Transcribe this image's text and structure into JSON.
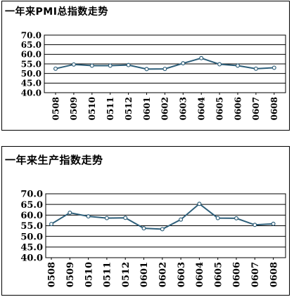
{
  "chart_data": [
    {
      "type": "line",
      "title": "一年来PMI总指数走势",
      "categories": [
        "0508",
        "0509",
        "0510",
        "0511",
        "0512",
        "0601",
        "0602",
        "0603",
        "0604",
        "0605",
        "0606",
        "0607",
        "0608"
      ],
      "series": [
        {
          "values": [
            52.5,
            54.7,
            54.1,
            54.1,
            54.4,
            52.3,
            52.4,
            55.3,
            58.0,
            54.8,
            54.1,
            52.5,
            53.0
          ],
          "color": "#2e5f7a",
          "marker": "circle"
        }
      ],
      "yticks": [
        "70.0",
        "65.0",
        "60.0",
        "55.0",
        "50.0",
        "45.0",
        "40.0"
      ],
      "ylim": [
        40,
        70
      ],
      "grid": "horizontal",
      "xlabel": "",
      "ylabel": ""
    },
    {
      "type": "line",
      "title": "一年来生产指数走势",
      "categories": [
        "0508",
        "0509",
        "0510",
        "0511",
        "0512",
        "0601",
        "0602",
        "0603",
        "0604",
        "0605",
        "0606",
        "0607",
        "0608"
      ],
      "series": [
        {
          "values": [
            55.8,
            61.1,
            59.4,
            58.6,
            58.7,
            53.8,
            53.4,
            57.9,
            65.3,
            58.6,
            58.5,
            55.4,
            55.9
          ],
          "color": "#2e5f7a",
          "marker": "circle"
        }
      ],
      "yticks": [
        "70.0",
        "65.0",
        "60.0",
        "55.0",
        "50.0",
        "45.0",
        "40.0"
      ],
      "ylim": [
        40,
        70
      ],
      "grid": "horizontal",
      "xlabel": "",
      "ylabel": ""
    }
  ]
}
